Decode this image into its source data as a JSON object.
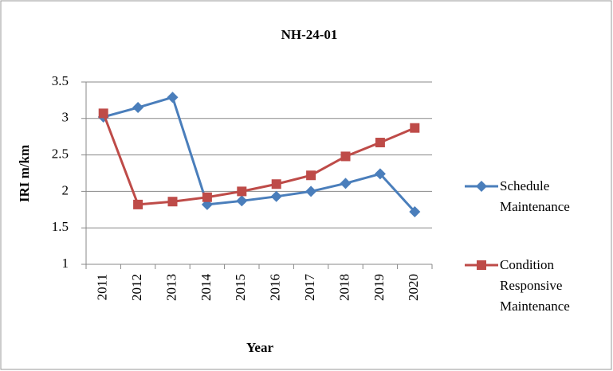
{
  "chart_data": {
    "type": "line",
    "title": "NH-24-01",
    "x_label": "Year",
    "y_label": "IRI m/km",
    "categories": [
      "2011",
      "2012",
      "2013",
      "2014",
      "2015",
      "2016",
      "2017",
      "2018",
      "2019",
      "2020"
    ],
    "series": [
      {
        "name": "Schedule Maintenance",
        "color": "#4a7ebb",
        "marker": "diamond",
        "values": [
          3.02,
          3.15,
          3.29,
          1.82,
          1.87,
          1.93,
          2.0,
          2.11,
          2.24,
          1.72
        ]
      },
      {
        "name": "Condition Responsive Maintenance",
        "color": "#be4b48",
        "marker": "square",
        "values": [
          3.07,
          1.82,
          1.86,
          1.92,
          2.0,
          2.1,
          2.22,
          2.48,
          2.67,
          2.87
        ]
      }
    ],
    "ylim": [
      1,
      3.5
    ],
    "yticks": [
      1,
      1.5,
      2,
      2.5,
      3,
      3.5
    ],
    "grid": true,
    "legend": "right"
  }
}
